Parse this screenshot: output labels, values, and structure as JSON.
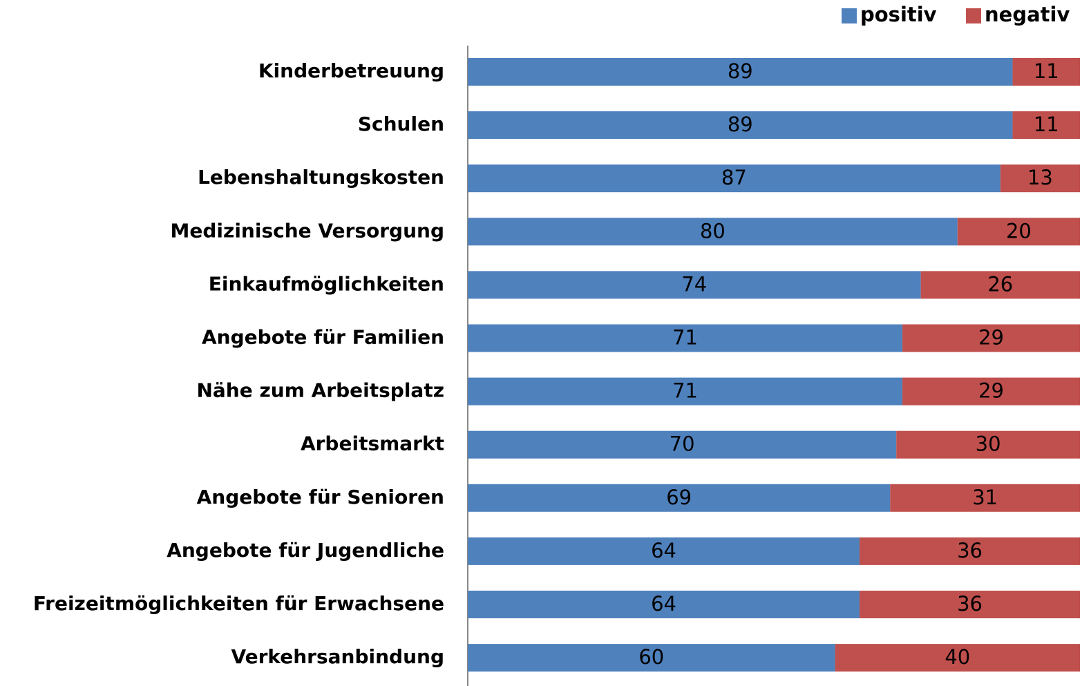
{
  "chart_data": {
    "type": "stacked-barh",
    "categories": [
      "Kinderbetreuung",
      "Schulen",
      "Lebenshaltungskosten",
      "Medizinische Versorgung",
      "Einkaufmöglichkeiten",
      "Angebote für Familien",
      "Nähe zum Arbeitsplatz",
      "Arbeitsmarkt",
      "Angebote für Senioren",
      "Angebote für Jugendliche",
      "Freizeitmöglichkeiten für Erwachsene",
      "Verkehrsanbindung"
    ],
    "series": [
      {
        "name": "positiv",
        "color": "#4f81bd",
        "values": [
          89,
          89,
          87,
          80,
          74,
          71,
          71,
          70,
          69,
          64,
          64,
          60
        ]
      },
      {
        "name": "negativ",
        "color": "#c0504d",
        "values": [
          11,
          11,
          13,
          20,
          26,
          29,
          29,
          30,
          31,
          36,
          36,
          40
        ]
      }
    ],
    "xlim": [
      0,
      100
    ],
    "legend": "top-right"
  }
}
